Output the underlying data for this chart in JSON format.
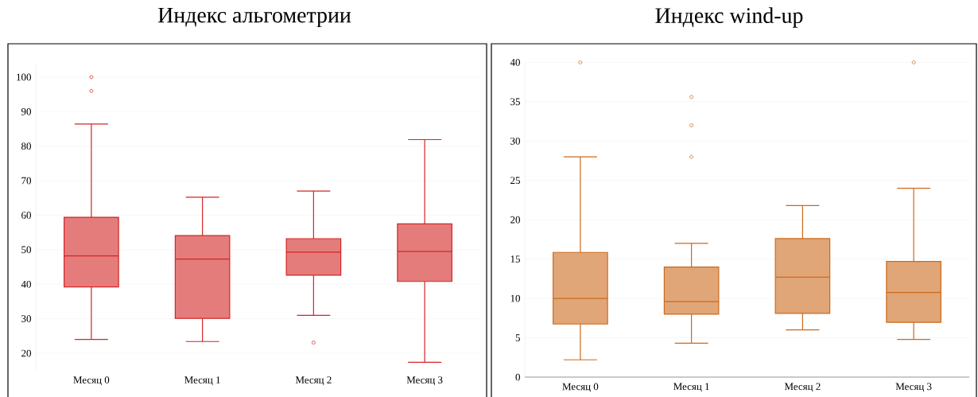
{
  "chart_data": [
    {
      "type": "box",
      "title": "Индекс альгометрии",
      "categories": [
        "Месяц 0",
        "Месяц 1",
        "Месяц 2",
        "Месяц 3"
      ],
      "color": "#d42525",
      "ylim": [
        15,
        104
      ],
      "yticks": [
        20,
        30,
        40,
        50,
        60,
        70,
        80,
        90,
        100
      ],
      "grid": "y",
      "boxes": [
        {
          "low": 24,
          "q1": 39.2,
          "median": 48.2,
          "q3": 59.4,
          "high": 86.4,
          "outliers": [
            100,
            96
          ]
        },
        {
          "low": 23.4,
          "q1": 30.1,
          "median": 47.3,
          "q3": 54.1,
          "high": 65.2
        },
        {
          "low": 31,
          "q1": 42.6,
          "median": 49.3,
          "q3": 53.2,
          "high": 67,
          "outliers": [
            23.1
          ]
        },
        {
          "low": 17.4,
          "q1": 40.8,
          "median": 49.5,
          "q3": 57.5,
          "high": 81.9
        }
      ]
    },
    {
      "type": "box",
      "title": "Индекс wind-up",
      "categories": [
        "Месяц 0",
        "Месяц 1",
        "Месяц 2",
        "Месяц 3"
      ],
      "color": "#cc6a1c",
      "ylim": [
        0,
        40
      ],
      "yticks": [
        0,
        5,
        10,
        15,
        20,
        25,
        30,
        35,
        40
      ],
      "grid": "y",
      "boxes": [
        {
          "low": 2.2,
          "q1": 6.75,
          "median": 10,
          "q3": 15.85,
          "high": 28,
          "outliers": [
            40
          ]
        },
        {
          "low": 4.3,
          "q1": 8,
          "median": 9.6,
          "q3": 14,
          "high": 17,
          "outliers": [
            35.6,
            32,
            28
          ]
        },
        {
          "low": 6,
          "q1": 8.1,
          "median": 12.7,
          "q3": 17.6,
          "high": 21.8
        },
        {
          "low": 4.8,
          "q1": 6.96,
          "median": 10.75,
          "q3": 14.7,
          "high": 24,
          "outliers": [
            40
          ]
        }
      ]
    }
  ]
}
